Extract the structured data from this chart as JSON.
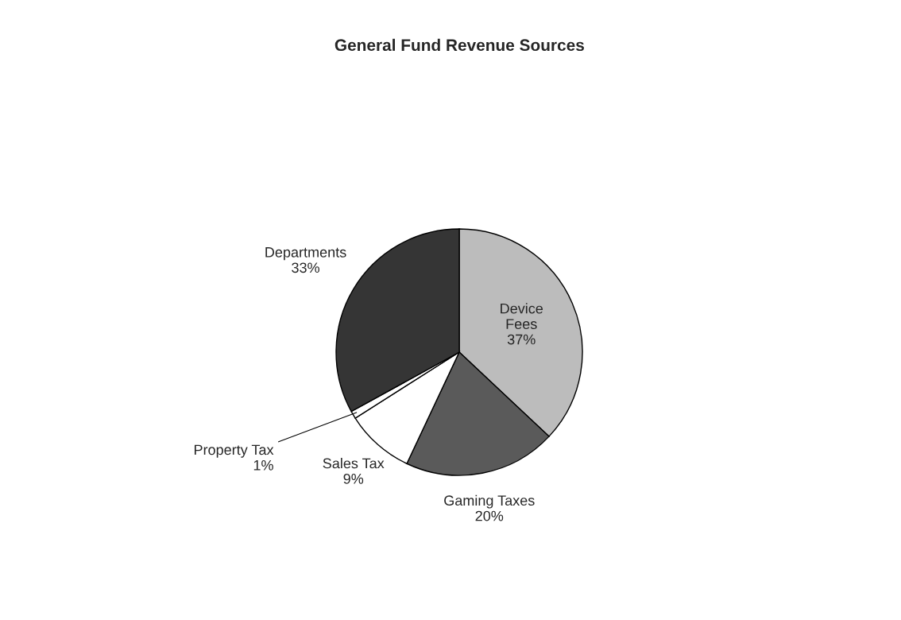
{
  "chart_data": {
    "type": "pie",
    "title": "General Fund Revenue Sources",
    "categories": [
      "Device Fees",
      "Gaming Taxes",
      "Sales Tax",
      "Property Tax",
      "Departments"
    ],
    "values": [
      37,
      20,
      9,
      1,
      33
    ],
    "colors": [
      "#bcbcbc",
      "#5a5a5a",
      "#ffffff",
      "#ffffff",
      "#353535"
    ],
    "value_labels": [
      "37%",
      "20%",
      "9%",
      "1%",
      "33%"
    ]
  }
}
